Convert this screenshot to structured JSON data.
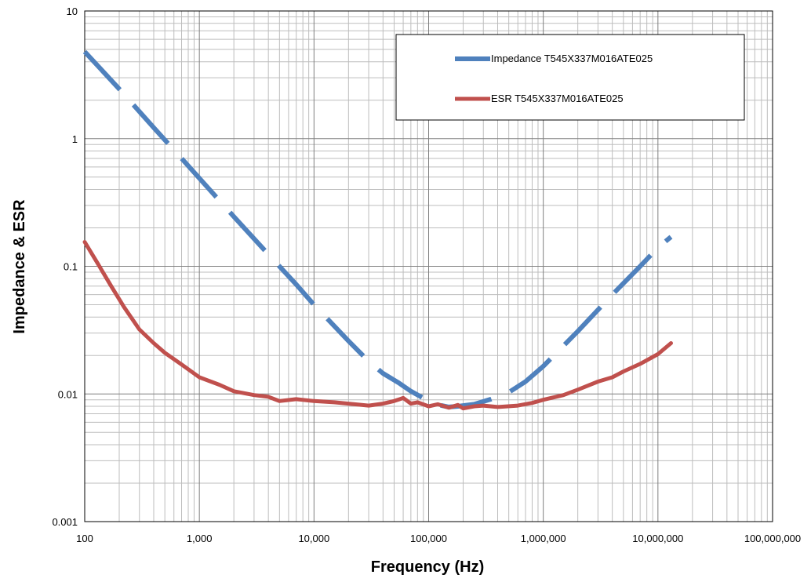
{
  "chart_data": {
    "type": "line",
    "xscale": "log",
    "yscale": "log",
    "xlim": [
      100,
      100000000
    ],
    "ylim": [
      0.001,
      10
    ],
    "grid": true,
    "legend_position": "top-right",
    "xlabel": "Frequency (Hz)",
    "ylabel": "Impedance & ESR",
    "x_tick_labels": [
      "100",
      "1,000",
      "10,000",
      "100,000",
      "1,000,000",
      "10,000,000",
      "100,000,000"
    ],
    "y_tick_labels": [
      "0.001",
      "0.01",
      "0.1",
      "1",
      "10"
    ],
    "series": [
      {
        "name": "Impedance T545X337M016ATE025",
        "color": "#4f81bd",
        "style": "dashed",
        "points": [
          [
            100,
            4.8
          ],
          [
            200,
            2.45
          ],
          [
            400,
            1.22
          ],
          [
            700,
            0.7
          ],
          [
            1000,
            0.49
          ],
          [
            2000,
            0.245
          ],
          [
            4000,
            0.124
          ],
          [
            7000,
            0.072
          ],
          [
            10000,
            0.05
          ],
          [
            20000,
            0.026
          ],
          [
            30000,
            0.018
          ],
          [
            40000,
            0.0145
          ],
          [
            55000,
            0.0122
          ],
          [
            70000,
            0.0105
          ],
          [
            100000,
            0.0088
          ],
          [
            130000,
            0.0081
          ],
          [
            150000,
            0.0079
          ],
          [
            180000,
            0.008
          ],
          [
            250000,
            0.0083
          ],
          [
            350000,
            0.0091
          ],
          [
            500000,
            0.0103
          ],
          [
            700000,
            0.0125
          ],
          [
            1000000,
            0.0165
          ],
          [
            2000000,
            0.031
          ],
          [
            4000000,
            0.06
          ],
          [
            7000000,
            0.1
          ],
          [
            10000000,
            0.14
          ],
          [
            13000000,
            0.17
          ]
        ]
      },
      {
        "name": "ESR T545X337M016ATE025",
        "color": "#c0504d",
        "style": "solid",
        "points": [
          [
            100,
            0.155
          ],
          [
            130,
            0.105
          ],
          [
            170,
            0.07
          ],
          [
            220,
            0.048
          ],
          [
            300,
            0.032
          ],
          [
            400,
            0.025
          ],
          [
            500,
            0.021
          ],
          [
            700,
            0.017
          ],
          [
            1000,
            0.0135
          ],
          [
            1500,
            0.0118
          ],
          [
            2000,
            0.0105
          ],
          [
            3000,
            0.0098
          ],
          [
            4000,
            0.0095
          ],
          [
            5000,
            0.0088
          ],
          [
            7000,
            0.0091
          ],
          [
            10000,
            0.0088
          ],
          [
            15000,
            0.0086
          ],
          [
            20000,
            0.0084
          ],
          [
            30000,
            0.0081
          ],
          [
            40000,
            0.0084
          ],
          [
            50000,
            0.0088
          ],
          [
            60000,
            0.0093
          ],
          [
            70000,
            0.0084
          ],
          [
            80000,
            0.0086
          ],
          [
            100000,
            0.008
          ],
          [
            120000,
            0.0083
          ],
          [
            150000,
            0.0078
          ],
          [
            180000,
            0.0082
          ],
          [
            200000,
            0.0077
          ],
          [
            250000,
            0.008
          ],
          [
            300000,
            0.0081
          ],
          [
            400000,
            0.0079
          ],
          [
            600000,
            0.0081
          ],
          [
            800000,
            0.0085
          ],
          [
            1000000,
            0.009
          ],
          [
            1500000,
            0.0098
          ],
          [
            2000000,
            0.0108
          ],
          [
            3000000,
            0.0125
          ],
          [
            4000000,
            0.0135
          ],
          [
            5000000,
            0.015
          ],
          [
            7000000,
            0.0172
          ],
          [
            10000000,
            0.0205
          ],
          [
            13000000,
            0.025
          ]
        ]
      }
    ]
  }
}
